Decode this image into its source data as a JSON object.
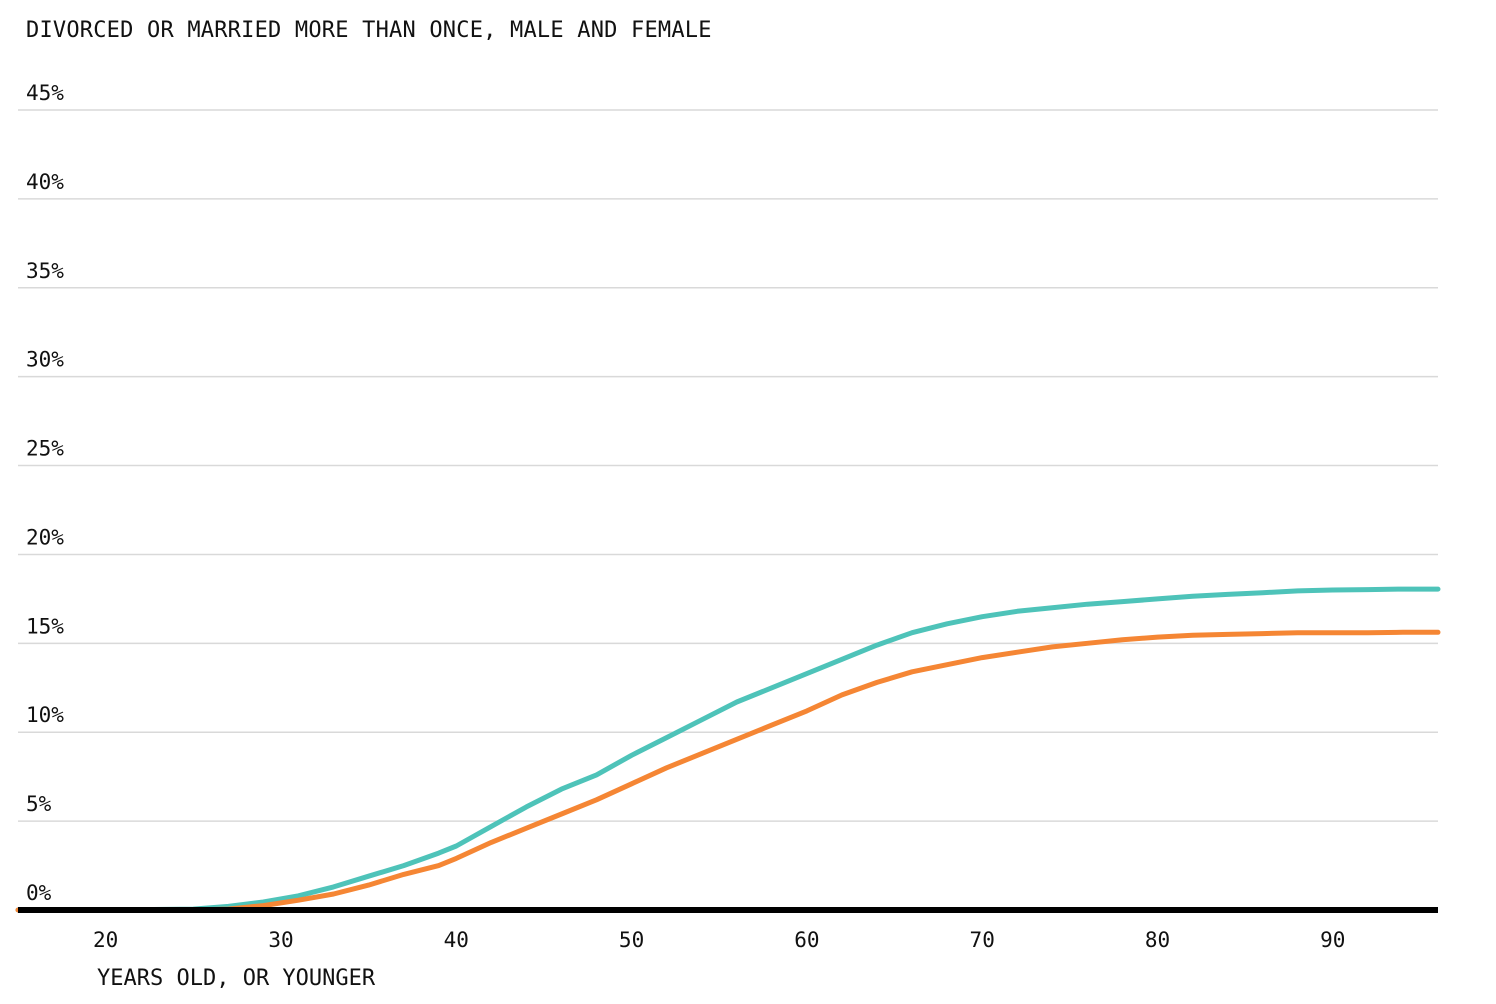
{
  "chart_data": {
    "type": "line",
    "title": "DIVORCED OR MARRIED MORE THAN ONCE, MALE AND FEMALE",
    "xlabel": "YEARS OLD, OR YOUNGER",
    "ylabel": "",
    "xlim": [
      15,
      96
    ],
    "ylim": [
      0,
      45
    ],
    "x_ticks": [
      20,
      30,
      40,
      50,
      60,
      70,
      80,
      90
    ],
    "x_tick_labels": [
      "20",
      "30",
      "40",
      "50",
      "60",
      "70",
      "80",
      "90"
    ],
    "y_ticks": [
      0,
      5,
      10,
      15,
      20,
      25,
      30,
      35,
      40,
      45
    ],
    "y_tick_labels": [
      "0%",
      "5%",
      "10%",
      "15%",
      "20%",
      "25%",
      "30%",
      "35%",
      "40%",
      "45%"
    ],
    "grid": true,
    "legend": "none",
    "x": [
      15,
      20,
      25,
      27,
      29,
      31,
      33,
      35,
      37,
      39,
      40,
      42,
      44,
      46,
      48,
      50,
      52,
      54,
      56,
      58,
      60,
      62,
      64,
      66,
      68,
      70,
      72,
      74,
      76,
      78,
      80,
      82,
      84,
      86,
      88,
      90,
      92,
      94,
      96
    ],
    "series": [
      {
        "color": "#4ec3b9",
        "values": [
          0,
          0,
          0.05,
          0.2,
          0.45,
          0.8,
          1.3,
          1.9,
          2.5,
          3.2,
          3.6,
          4.7,
          5.8,
          6.8,
          7.6,
          8.7,
          9.7,
          10.7,
          11.7,
          12.5,
          13.3,
          14.1,
          14.9,
          15.6,
          16.1,
          16.5,
          16.8,
          17.0,
          17.2,
          17.35,
          17.5,
          17.65,
          17.75,
          17.85,
          17.95,
          18.0,
          18.02,
          18.05,
          18.05
        ]
      },
      {
        "color": "#f58634",
        "values": [
          0,
          0,
          0,
          0.05,
          0.25,
          0.55,
          0.9,
          1.4,
          2.0,
          2.5,
          2.9,
          3.8,
          4.6,
          5.4,
          6.2,
          7.1,
          8.0,
          8.8,
          9.6,
          10.4,
          11.2,
          12.1,
          12.8,
          13.4,
          13.8,
          14.2,
          14.5,
          14.8,
          15.0,
          15.2,
          15.35,
          15.45,
          15.5,
          15.55,
          15.6,
          15.6,
          15.6,
          15.62,
          15.62
        ]
      }
    ]
  }
}
